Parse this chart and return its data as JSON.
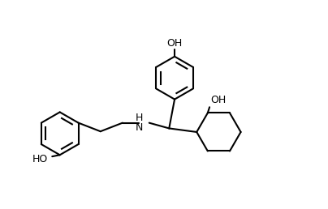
{
  "bg_color": "#ffffff",
  "line_color": "#000000",
  "line_width": 1.5,
  "font_size": 9,
  "fig_width": 4.04,
  "fig_height": 2.58,
  "dpi": 100,
  "xlim": [
    0,
    10.5
  ],
  "ylim": [
    0,
    6.8
  ]
}
